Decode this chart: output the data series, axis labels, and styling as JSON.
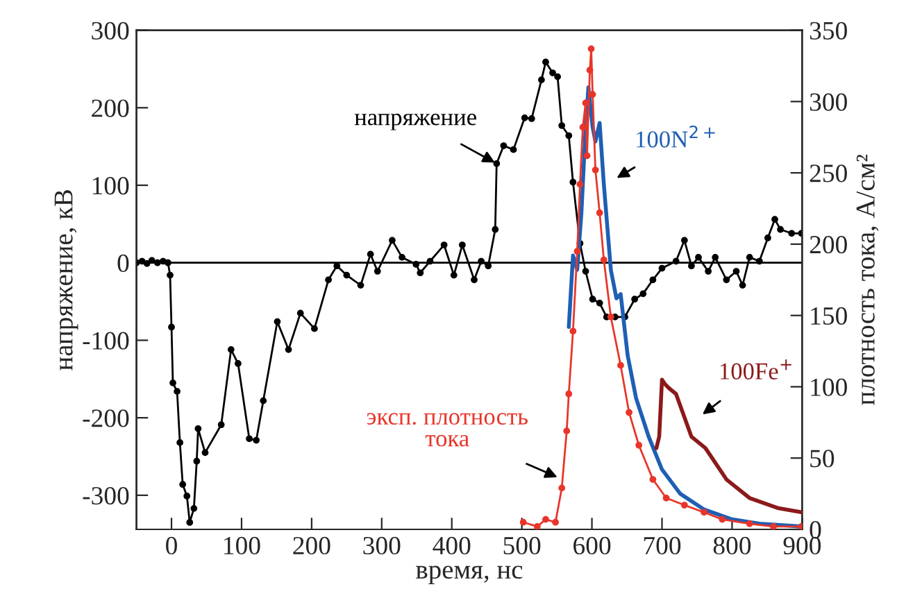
{
  "chart_data": {
    "type": "line",
    "xlabel": "время, нс",
    "ylabel": "напряжение, кВ",
    "y2label": "плотность тока, А/см²",
    "xlim": [
      -50,
      900
    ],
    "xticks": [
      0,
      100,
      200,
      300,
      400,
      500,
      600,
      700,
      800,
      900
    ],
    "ylim": [
      -344,
      300
    ],
    "yticks": [
      -300,
      -200,
      -100,
      0,
      100,
      200,
      300
    ],
    "y2lim": [
      0,
      350
    ],
    "y2ticks": [
      0,
      50,
      100,
      150,
      200,
      250,
      300,
      350
    ],
    "grid": false,
    "legend": false,
    "ref_lines": [
      {
        "axis": "y",
        "value": 0,
        "color": "#000000"
      }
    ],
    "annotations": [
      {
        "text": "напряжение",
        "x": 464,
        "y": 128
      },
      "100N$^{2+}$",
      "100Fe$^{+}$",
      "эксп. плотность\nтока"
    ],
    "series": [
      {
        "color": "#000000",
        "marker": "circle",
        "x": [
          -50,
          -42,
          -35,
          -28,
          -20,
          -12,
          -5,
          -2,
          0,
          2,
          8,
          12,
          16,
          22,
          26,
          32,
          36,
          38,
          48,
          71,
          85,
          95,
          111,
          121,
          131,
          151,
          167,
          184,
          204,
          224,
          236,
          250,
          270,
          284,
          294,
          315,
          329,
          349,
          355,
          369,
          389,
          403,
          415,
          432,
          442,
          452,
          462,
          464,
          474,
          488,
          504,
          514,
          528,
          534,
          544,
          551,
          557,
          567,
          573,
          583,
          591,
          601,
          611,
          621,
          633,
          647,
          661,
          673,
          687,
          700,
          720,
          732,
          742,
          752,
          766,
          776,
          792,
          806,
          815,
          825,
          839,
          851,
          861,
          869,
          885,
          899
        ],
        "values": [
          0,
          2,
          -1,
          3,
          0,
          2,
          0,
          -16,
          -83,
          -155,
          -166,
          -232,
          -286,
          -301,
          -335,
          -317,
          -256,
          -214,
          -245,
          -209,
          -112,
          -130,
          -227,
          -229,
          -178,
          -76,
          -112,
          -65,
          -85,
          -22,
          -4,
          -16,
          -29,
          11,
          -11,
          29,
          7,
          -2,
          -13,
          2,
          23,
          -16,
          23,
          -22,
          2,
          -4,
          43,
          128,
          151,
          146,
          187,
          186,
          236,
          259,
          245,
          240,
          177,
          164,
          104,
          25,
          -11,
          -47,
          -52,
          -70,
          -70,
          -70,
          -47,
          -40,
          -22,
          -7,
          2,
          29,
          -4,
          7,
          -11,
          7,
          -22,
          -11,
          -29,
          7,
          2,
          32,
          56,
          43,
          38,
          38
        ]
      },
      {
        "color": "#e8352a",
        "marker": "circle",
        "axis": "y2",
        "x": [
          502,
          522,
          534,
          548,
          557,
          564,
          567,
          573,
          579,
          583,
          587,
          591,
          593,
          597,
          599,
          601,
          605,
          611,
          617,
          627,
          641,
          653,
          667,
          687,
          706,
          732,
          760,
          786,
          825,
          859,
          899
        ],
        "values": [
          5,
          2,
          7,
          5,
          29,
          69,
          95,
          139,
          195,
          242,
          282,
          299,
          262,
          322,
          337,
          305,
          252,
          222,
          189,
          149,
          115,
          82,
          59,
          35,
          22,
          17,
          12,
          7,
          4,
          2,
          2
        ]
      },
      {
        "color": "#1f5fb4",
        "axis": "y2",
        "x": [
          567,
          573,
          579,
          585,
          591,
          595,
          601,
          605,
          611,
          617,
          627,
          635,
          641,
          651,
          663,
          681,
          700,
          726,
          760,
          800,
          839,
          899
        ],
        "values": [
          142,
          192,
          182,
          222,
          282,
          310,
          282,
          272,
          285,
          242,
          182,
          162,
          165,
          122,
          92,
          65,
          42,
          25,
          14,
          7,
          4,
          2
        ]
      },
      {
        "color": "#8b1a1a",
        "axis": "y2",
        "x": [
          692,
          696,
          700,
          704,
          710,
          720,
          742,
          762,
          792,
          825,
          865,
          899
        ],
        "values": [
          57,
          65,
          105,
          102,
          99,
          95,
          65,
          57,
          35,
          22,
          15,
          12
        ]
      }
    ]
  }
}
